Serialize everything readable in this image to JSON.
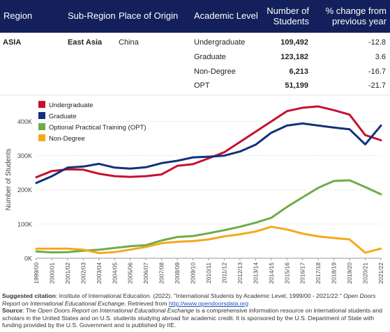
{
  "table": {
    "headers": {
      "region": "Region",
      "sub_region": "Sub-Region",
      "origin": "Place of Origin",
      "level": "Academic Level",
      "students_line1": "Number of",
      "students_line2": "Students",
      "change_line1": "% change from",
      "change_line2": "previous year"
    },
    "region": "ASIA",
    "sub_region": "East Asia",
    "origin": "China",
    "rows": [
      {
        "level": "Undergraduate",
        "students": "109,492",
        "change": "-12.8"
      },
      {
        "level": "Graduate",
        "students": "123,182",
        "change": "3.6"
      },
      {
        "level": "Non-Degree",
        "students": "6,213",
        "change": "-16.7"
      },
      {
        "level": "OPT",
        "students": "51,199",
        "change": "-21.7"
      }
    ]
  },
  "chart_data": {
    "type": "line",
    "ylabel": "Number of Students",
    "ylim": [
      0,
      460000
    ],
    "yticks": [
      0,
      100000,
      200000,
      300000,
      400000
    ],
    "ytick_labels": [
      "0K",
      "100K",
      "200K",
      "300K",
      "400K"
    ],
    "legend_position": "top-left",
    "x": [
      "1999/00",
      "2000/01",
      "2001/02",
      "2002/03",
      "2003/04",
      "2004/05",
      "2005/06",
      "2006/07",
      "2007/08",
      "2008/09",
      "2009/10",
      "2010/11",
      "2011/12",
      "2012/13",
      "2013/14",
      "2014/15",
      "2015/16",
      "2016/17",
      "2017/18",
      "2018/19",
      "2019/20",
      "2020/21",
      "2021/22"
    ],
    "series": [
      {
        "name": "Undergraduate",
        "color": "#c8102e",
        "values": [
          237000,
          255000,
          260000,
          259000,
          247000,
          240000,
          238000,
          240000,
          245000,
          270000,
          275000,
          292000,
          310000,
          340000,
          370000,
          400000,
          430000,
          440000,
          444000,
          433000,
          420000,
          360000,
          345000
        ]
      },
      {
        "name": "Graduate",
        "color": "#13307c",
        "values": [
          220000,
          240000,
          265000,
          268000,
          276000,
          265000,
          262000,
          266000,
          278000,
          285000,
          295000,
          297000,
          300000,
          312000,
          332000,
          367000,
          388000,
          394000,
          388000,
          382000,
          377000,
          333000,
          388000
        ]
      },
      {
        "name": "Optional Practical Training (OPT)",
        "color": "#6fac46",
        "values": [
          20000,
          17000,
          18000,
          22000,
          25000,
          30000,
          35000,
          38000,
          52000,
          62000,
          65000,
          73000,
          82000,
          92000,
          104000,
          118000,
          150000,
          178000,
          206000,
          226000,
          228000,
          208000,
          187000
        ]
      },
      {
        "name": "Non-Degree",
        "color": "#f5a81b",
        "values": [
          28000,
          28000,
          28000,
          25000,
          15000,
          18000,
          25000,
          33000,
          44000,
          48000,
          50000,
          55000,
          64000,
          70000,
          78000,
          92000,
          84000,
          72000,
          64000,
          59000,
          55000,
          16000,
          28000
        ]
      }
    ]
  },
  "footer": {
    "citation_label": "Suggested citation",
    "citation_text": ": Institute of International Education. (2022). \"International Students by Academic Level, 1999/00 - 2021/22.\"",
    "report_title": "Open Doors Report on International Educational Exchange",
    "retrieved": ". Retrieved from ",
    "url": "http://www.opendoorsdata.org",
    "source_label": "Source",
    "source_pre": ": The ",
    "source_title": "Open Doors Report on International Educational Exchange",
    "source_text": " is a comprehensive information resource on international students and scholars in the United States and on U.S. students studying abroad for academic credit. It is sponsored by the U.S. Department of State with funding provided by the U.S. Government and is published by IIE."
  }
}
